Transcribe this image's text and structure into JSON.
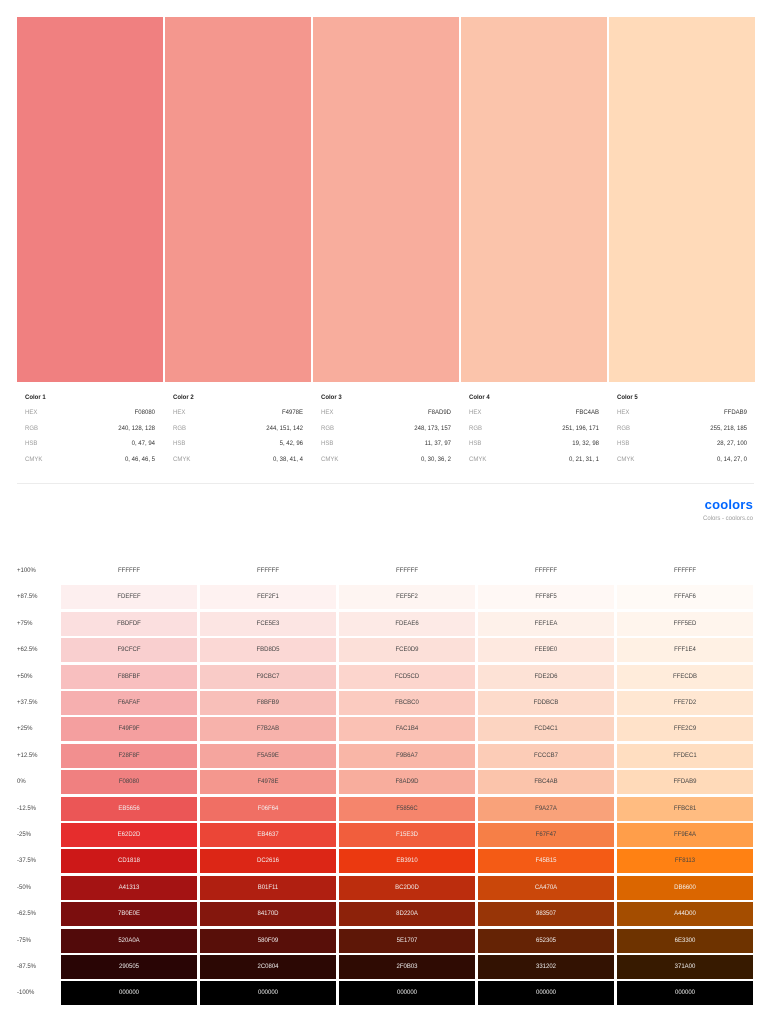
{
  "palette": [
    {
      "name": "Color 1",
      "hex": "F08080",
      "rgb": "240, 128, 128",
      "hsb": "0, 47, 94",
      "cmyk": "0, 46, 46, 5",
      "color": "#F08080"
    },
    {
      "name": "Color 2",
      "hex": "F4978E",
      "rgb": "244, 151, 142",
      "hsb": "5, 42, 96",
      "cmyk": "0, 38, 41, 4",
      "color": "#F4978E"
    },
    {
      "name": "Color 3",
      "hex": "F8AD9D",
      "rgb": "248, 173, 157",
      "hsb": "11, 37, 97",
      "cmyk": "0, 30, 36, 2",
      "color": "#F8AD9D"
    },
    {
      "name": "Color 4",
      "hex": "FBC4AB",
      "rgb": "251, 196, 171",
      "hsb": "19, 32, 98",
      "cmyk": "0, 21, 31, 1",
      "color": "#FBC4AB"
    },
    {
      "name": "Color 5",
      "hex": "FFDAB9",
      "rgb": "255, 218, 185",
      "hsb": "28, 27, 100",
      "cmyk": "0, 14, 27, 0",
      "color": "#FFDAB9"
    }
  ],
  "labels": {
    "hex": "HEX",
    "rgb": "RGB",
    "hsb": "HSB",
    "cmyk": "CMYK"
  },
  "brand": {
    "logo": "coolors",
    "subtitle": "Colors - coolors.co"
  },
  "shades": [
    {
      "label": "+100%",
      "values": [
        "FFFFFF",
        "FFFFFF",
        "FFFFFF",
        "FFFFFF",
        "FFFFFF"
      ]
    },
    {
      "label": "+87.5%",
      "values": [
        "FDEFEF",
        "FEF2F1",
        "FEF5F2",
        "FFF8F5",
        "FFFAF6"
      ]
    },
    {
      "label": "+75%",
      "values": [
        "FBDFDF",
        "FCE5E3",
        "FDEAE6",
        "FEF1EA",
        "FFF5ED"
      ]
    },
    {
      "label": "+62.5%",
      "values": [
        "F9CFCF",
        "FBD8D5",
        "FCE0D9",
        "FEE9E0",
        "FFF1E4"
      ]
    },
    {
      "label": "+50%",
      "values": [
        "F8BFBF",
        "F9CBC7",
        "FCD5CD",
        "FDE2D6",
        "FFECDB"
      ]
    },
    {
      "label": "+37.5%",
      "values": [
        "F6AFAF",
        "F8BFB9",
        "FBCBC0",
        "FDDBCB",
        "FFE7D2"
      ]
    },
    {
      "label": "+25%",
      "values": [
        "F49F9F",
        "F7B2AB",
        "FAC1B4",
        "FCD4C1",
        "FFE2C9"
      ]
    },
    {
      "label": "+12.5%",
      "values": [
        "F28F8F",
        "F5A59E",
        "F9B6A7",
        "FCCCB7",
        "FFDEC1"
      ]
    },
    {
      "label": "0%",
      "values": [
        "F08080",
        "F4978E",
        "F8AD9D",
        "FBC4AB",
        "FFDAB9"
      ]
    },
    {
      "label": "-12.5%",
      "values": [
        "EB5656",
        "F06F64",
        "F5856C",
        "F9A27A",
        "FFBC81"
      ]
    },
    {
      "label": "-25%",
      "values": [
        "E62D2D",
        "EB4637",
        "F15E3D",
        "F67F47",
        "FF9E4A"
      ]
    },
    {
      "label": "-37.5%",
      "values": [
        "CD1818",
        "DC2616",
        "EB3910",
        "F45B15",
        "FF8113"
      ]
    },
    {
      "label": "-50%",
      "values": [
        "A41313",
        "B01F11",
        "BC2D0D",
        "CA470A",
        "DB6600"
      ]
    },
    {
      "label": "-62.5%",
      "values": [
        "7B0E0E",
        "84170D",
        "8D220A",
        "983507",
        "A44D00"
      ]
    },
    {
      "label": "-75%",
      "values": [
        "520A0A",
        "580F09",
        "5E1707",
        "652305",
        "6E3300"
      ]
    },
    {
      "label": "-87.5%",
      "values": [
        "290505",
        "2C0804",
        "2F0B03",
        "331202",
        "371A00"
      ]
    },
    {
      "label": "-100%",
      "values": [
        "000000",
        "000000",
        "000000",
        "000000",
        "000000"
      ]
    }
  ]
}
